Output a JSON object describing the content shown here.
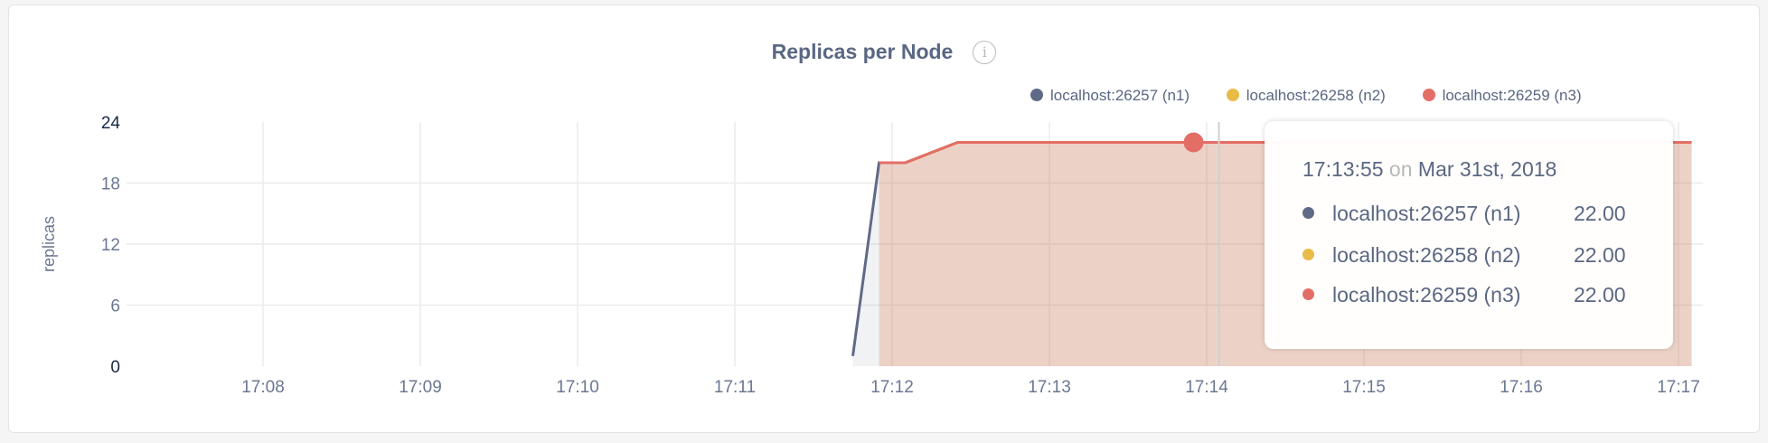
{
  "chart_data": {
    "type": "line",
    "title": "Replicas per Node",
    "ylabel": "replicas",
    "xlabel": "",
    "ylim": [
      0,
      24
    ],
    "yticks": [
      "0",
      "6",
      "12",
      "18",
      "24"
    ],
    "xlim": [
      "17:07:20",
      "17:17:15"
    ],
    "xticks": [
      "17:08",
      "17:09",
      "17:10",
      "17:11",
      "17:12",
      "17:13",
      "17:14",
      "17:15",
      "17:16",
      "17:17"
    ],
    "grid": true,
    "legend_position": "top-right",
    "series": [
      {
        "name": "localhost:26257 (n1)",
        "color": "#5f6a87",
        "points": [
          [
            "17:11:45",
            1
          ],
          [
            "17:11:55",
            20
          ],
          [
            "17:12:05",
            20
          ],
          [
            "17:12:25",
            22
          ],
          [
            "17:17:05",
            22
          ]
        ]
      },
      {
        "name": "localhost:26258 (n2)",
        "color": "#e9bb47",
        "points": [
          [
            "17:11:55",
            20
          ],
          [
            "17:12:05",
            20
          ],
          [
            "17:12:25",
            22
          ],
          [
            "17:17:05",
            22
          ]
        ]
      },
      {
        "name": "localhost:26259 (n3)",
        "color": "#e36e66",
        "points": [
          [
            "17:11:55",
            20
          ],
          [
            "17:12:05",
            20
          ],
          [
            "17:12:25",
            22
          ],
          [
            "17:17:05",
            22
          ]
        ]
      }
    ],
    "hover": {
      "time": "17:13:55"
    }
  },
  "info_icon": "info-icon",
  "tooltip": {
    "time": "17:13:55",
    "on": "on",
    "date": "Mar 31st, 2018",
    "rows": [
      {
        "label": "localhost:26257 (n1)",
        "value": "22.00",
        "color": "#5f6a87"
      },
      {
        "label": "localhost:26258 (n2)",
        "value": "22.00",
        "color": "#e9bb47"
      },
      {
        "label": "localhost:26259 (n3)",
        "value": "22.00",
        "color": "#e36e66"
      }
    ]
  }
}
